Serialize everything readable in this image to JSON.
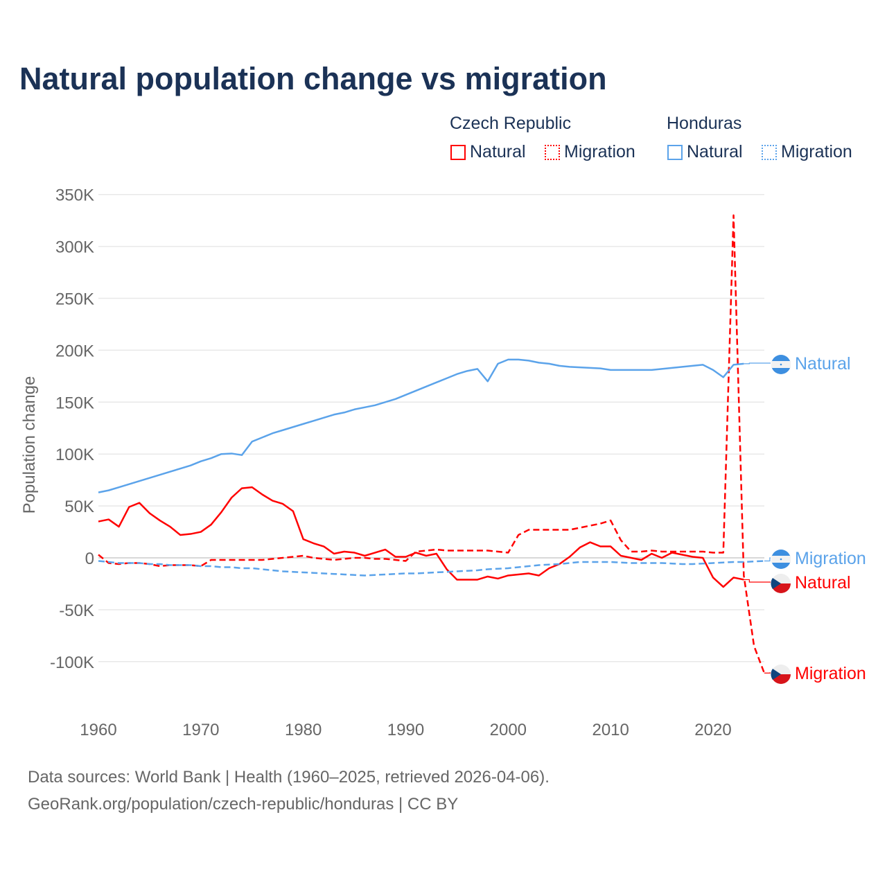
{
  "chart_data": {
    "type": "line",
    "title": "Natural population change vs migration",
    "xlabel": "",
    "ylabel": "Population change",
    "xlim": [
      1960,
      2025
    ],
    "ylim": [
      -100000,
      350000
    ],
    "yticks": [
      350000,
      300000,
      250000,
      200000,
      150000,
      100000,
      50000,
      0,
      -50000,
      -100000
    ],
    "ytick_labels": [
      "350K",
      "300K",
      "250K",
      "200K",
      "150K",
      "100K",
      "50K",
      "0",
      "-50K",
      "-100K"
    ],
    "xticks": [
      1960,
      1970,
      1980,
      1990,
      2000,
      2010,
      2020
    ],
    "xtick_labels": [
      "1960",
      "1970",
      "1980",
      "1990",
      "2000",
      "2010",
      "2020"
    ],
    "grid": true,
    "legend": {
      "groups": [
        {
          "country": "Czech Republic",
          "items": [
            "Natural",
            "Migration"
          ]
        },
        {
          "country": "Honduras",
          "items": [
            "Natural",
            "Migration"
          ]
        }
      ],
      "placement": "top-right"
    },
    "series": [
      {
        "name": "Czech Republic Natural",
        "label": "Natural",
        "color": "#ff0000",
        "dash": false,
        "start": 1960,
        "values_k": [
          35,
          37,
          30,
          49,
          53,
          43,
          36,
          30,
          22,
          23,
          25,
          32,
          44,
          58,
          67,
          68,
          61,
          55,
          52,
          45,
          18,
          14,
          11,
          4,
          6,
          5,
          2,
          5,
          8,
          1,
          1,
          5,
          2,
          4,
          -11,
          -21,
          -21,
          -21,
          -18,
          -20,
          -17,
          -16,
          -15,
          -17,
          -10,
          -6,
          1,
          10,
          15,
          11,
          11,
          2,
          0,
          -2,
          4,
          0,
          5,
          3,
          1,
          0,
          -19,
          -28,
          -19,
          -21
        ]
      },
      {
        "name": "Czech Republic Migration",
        "label": "Migration",
        "color": "#ff0000",
        "dash": true,
        "start": 1960,
        "values_k": [
          3,
          -5,
          -6,
          -5,
          -5,
          -6,
          -8,
          -7,
          -7,
          -7,
          -8,
          -2,
          -2,
          -2,
          -2,
          -2,
          -2,
          -1,
          0,
          1,
          2,
          0,
          -1,
          -2,
          -1,
          0,
          0,
          -1,
          -1,
          -2,
          -3,
          6,
          7,
          8,
          7,
          7,
          7,
          7,
          7,
          6,
          5,
          22,
          27,
          27,
          27,
          27,
          27,
          29,
          31,
          33,
          36,
          17,
          6,
          6,
          7,
          6,
          6,
          6,
          6,
          6,
          5,
          5,
          330,
          -17,
          -85,
          -111
        ]
      },
      {
        "name": "Honduras Natural",
        "label": "Natural",
        "color": "#5ba3ea",
        "dash": false,
        "start": 1960,
        "values_k": [
          63,
          65,
          68,
          71,
          74,
          77,
          80,
          83,
          86,
          89,
          93,
          96,
          100,
          100.5,
          99,
          112,
          116,
          120,
          123,
          126,
          129,
          132,
          135,
          138,
          140,
          143,
          145,
          147,
          150,
          153,
          157,
          161,
          165,
          169,
          173,
          177,
          180,
          182,
          170,
          187,
          191,
          191,
          190,
          188,
          187,
          185,
          184,
          183.5,
          183,
          182.5,
          181,
          181,
          181,
          181,
          181,
          182,
          183,
          184,
          185,
          186,
          181,
          174,
          186,
          187
        ]
      },
      {
        "name": "Honduras Migration",
        "label": "Migration",
        "color": "#5ba3ea",
        "dash": true,
        "start": 1960,
        "values_k": [
          -3,
          -4,
          -5,
          -5,
          -5,
          -6,
          -6,
          -7,
          -7,
          -7,
          -8,
          -8,
          -9,
          -9,
          -10,
          -10,
          -11,
          -12,
          -13,
          -13.5,
          -14,
          -14.5,
          -15,
          -15.5,
          -16,
          -16.5,
          -17,
          -16.5,
          -16,
          -15.5,
          -15,
          -15,
          -14.5,
          -14,
          -13.5,
          -13,
          -12.5,
          -12,
          -11,
          -10.5,
          -10,
          -9,
          -8,
          -7,
          -6.5,
          -6,
          -5,
          -4,
          -4,
          -4,
          -4,
          -4.5,
          -5,
          -5,
          -5,
          -5,
          -5.5,
          -6,
          -6,
          -5.5,
          -5,
          -4.5,
          -4,
          -4,
          -3.5,
          -3
        ]
      }
    ]
  },
  "legend_headers": {
    "czech": "Czech Republic",
    "honduras": "Honduras"
  },
  "legend_items": {
    "cz_nat": "Natural",
    "cz_mig": "Migration",
    "hn_nat": "Natural",
    "hn_mig": "Migration"
  },
  "end_labels": {
    "hn_nat": "Natural",
    "hn_mig": "Migration",
    "cz_nat": "Natural",
    "cz_mig": "Migration"
  },
  "footer": {
    "line1": "Data sources: World Bank | Health (1960–2025, retrieved 2026-04-06).",
    "line2": "GeoRank.org/population/czech-republic/honduras | CC BY"
  }
}
